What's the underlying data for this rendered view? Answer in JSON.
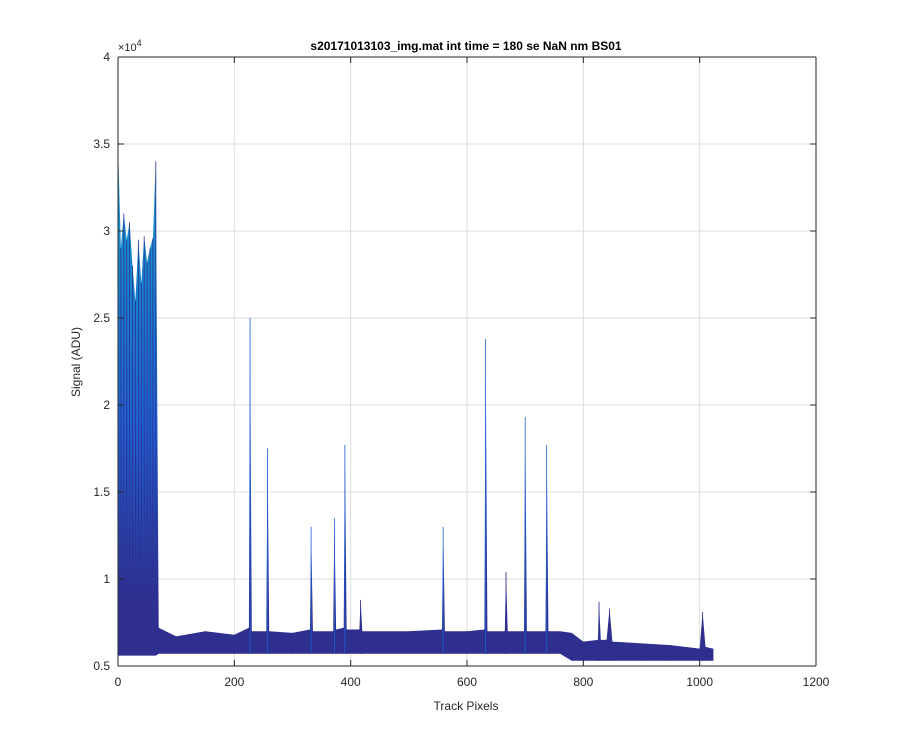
{
  "chart_data": {
    "type": "line",
    "title": "s20171013103_img.mat int time = 180 se  NaN nm BS01",
    "xlabel": "Track Pixels",
    "ylabel": "Signal (ADU)",
    "xlim": [
      0,
      1200
    ],
    "ylim": [
      5000,
      40000
    ],
    "xticks": [
      0,
      200,
      400,
      600,
      800,
      1000,
      1200
    ],
    "xtick_labels": [
      "0",
      "200",
      "400",
      "600",
      "800",
      "1000",
      "1200"
    ],
    "yticks": [
      5000,
      10000,
      15000,
      20000,
      25000,
      30000,
      35000,
      40000
    ],
    "ytick_labels": [
      "0.5",
      "1",
      "1.5",
      "2",
      "2.5",
      "3",
      "3.5",
      "4"
    ],
    "y_exponent_label": "×10",
    "y_exponent_power": "4",
    "grid": true,
    "colors": {
      "series_dark": "#2e2f8f",
      "series_mid": "#1f5fd1",
      "series_light": "#12a4cc",
      "grid": "#dcdcdc",
      "axis": "#262626"
    },
    "series": [
      {
        "x": [
          0,
          5,
          10,
          15,
          20,
          25,
          30,
          35,
          40,
          45,
          50,
          55,
          60,
          65,
          70,
          100,
          150,
          200,
          225,
          227,
          230,
          255,
          257,
          260,
          300,
          330,
          332,
          335,
          370,
          372,
          375,
          388,
          390,
          393,
          415,
          417,
          420,
          500,
          557,
          559,
          562,
          600,
          630,
          632,
          635,
          665,
          667,
          670,
          698,
          700,
          703,
          735,
          737,
          740,
          760,
          780,
          800,
          825,
          827,
          830,
          840,
          845,
          850,
          900,
          950,
          1000,
          1005,
          1010,
          1023
        ],
        "y": [
          35000,
          29000,
          31000,
          29500,
          30500,
          28000,
          26000,
          29500,
          27000,
          29700,
          28200,
          29000,
          29600,
          34000,
          7200,
          6700,
          7000,
          6800,
          7200,
          25000,
          7000,
          7000,
          17500,
          7000,
          6900,
          7100,
          13000,
          7000,
          7000,
          13500,
          7100,
          7200,
          17700,
          7100,
          7100,
          8800,
          7000,
          7000,
          7100,
          13000,
          7000,
          7000,
          7100,
          23800,
          7000,
          7000,
          10400,
          7000,
          7000,
          19300,
          7000,
          7000,
          17700,
          7000,
          7000,
          6900,
          6400,
          6500,
          8700,
          6500,
          6500,
          8300,
          6400,
          6300,
          6200,
          6000,
          8100,
          6100,
          6000
        ]
      }
    ]
  }
}
